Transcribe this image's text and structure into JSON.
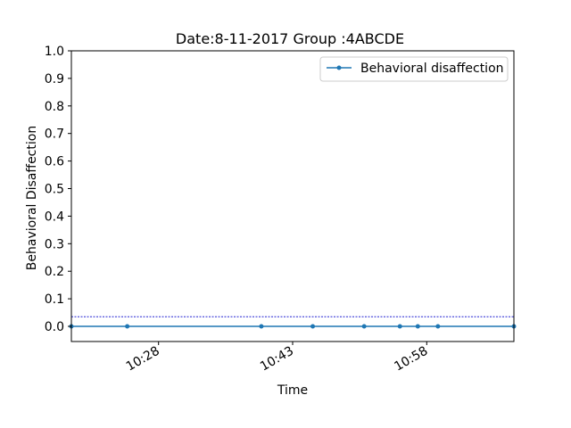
{
  "chart_data": {
    "type": "line",
    "title": "Date:8-11-2017 Group :4ABCDE",
    "xlabel": "Time",
    "ylabel": "Behavioral Disaffection",
    "ylim": [
      -0.055,
      1.0
    ],
    "xlim": [
      "10:18:15",
      "11:07:45"
    ],
    "yticks": [
      "0.0",
      "0.1",
      "0.2",
      "0.3",
      "0.4",
      "0.5",
      "0.6",
      "0.7",
      "0.8",
      "0.9",
      "1.0"
    ],
    "xticks": [
      {
        "time": "10:28",
        "label": "10:28"
      },
      {
        "time": "10:43",
        "label": "10:43"
      },
      {
        "time": "10:58",
        "label": "10:58"
      }
    ],
    "series": [
      {
        "name": "Behavioral disaffection",
        "color": "#1f77b4",
        "marker": "circle",
        "points": [
          {
            "x": "10:18:15",
            "y": 0.0
          },
          {
            "x": "10:24:30",
            "y": 0.0
          },
          {
            "x": "10:39:30",
            "y": 0.0
          },
          {
            "x": "10:45:15",
            "y": 0.0
          },
          {
            "x": "10:51:00",
            "y": 0.0
          },
          {
            "x": "10:55:00",
            "y": 0.0
          },
          {
            "x": "10:57:00",
            "y": 0.0
          },
          {
            "x": "10:59:15",
            "y": 0.0
          },
          {
            "x": "11:07:45",
            "y": 0.0
          }
        ]
      }
    ],
    "reference_line": {
      "y": 0.035,
      "color": "#0000cc",
      "style": "dashed"
    },
    "grid": false,
    "legend_position": "upper-right"
  }
}
